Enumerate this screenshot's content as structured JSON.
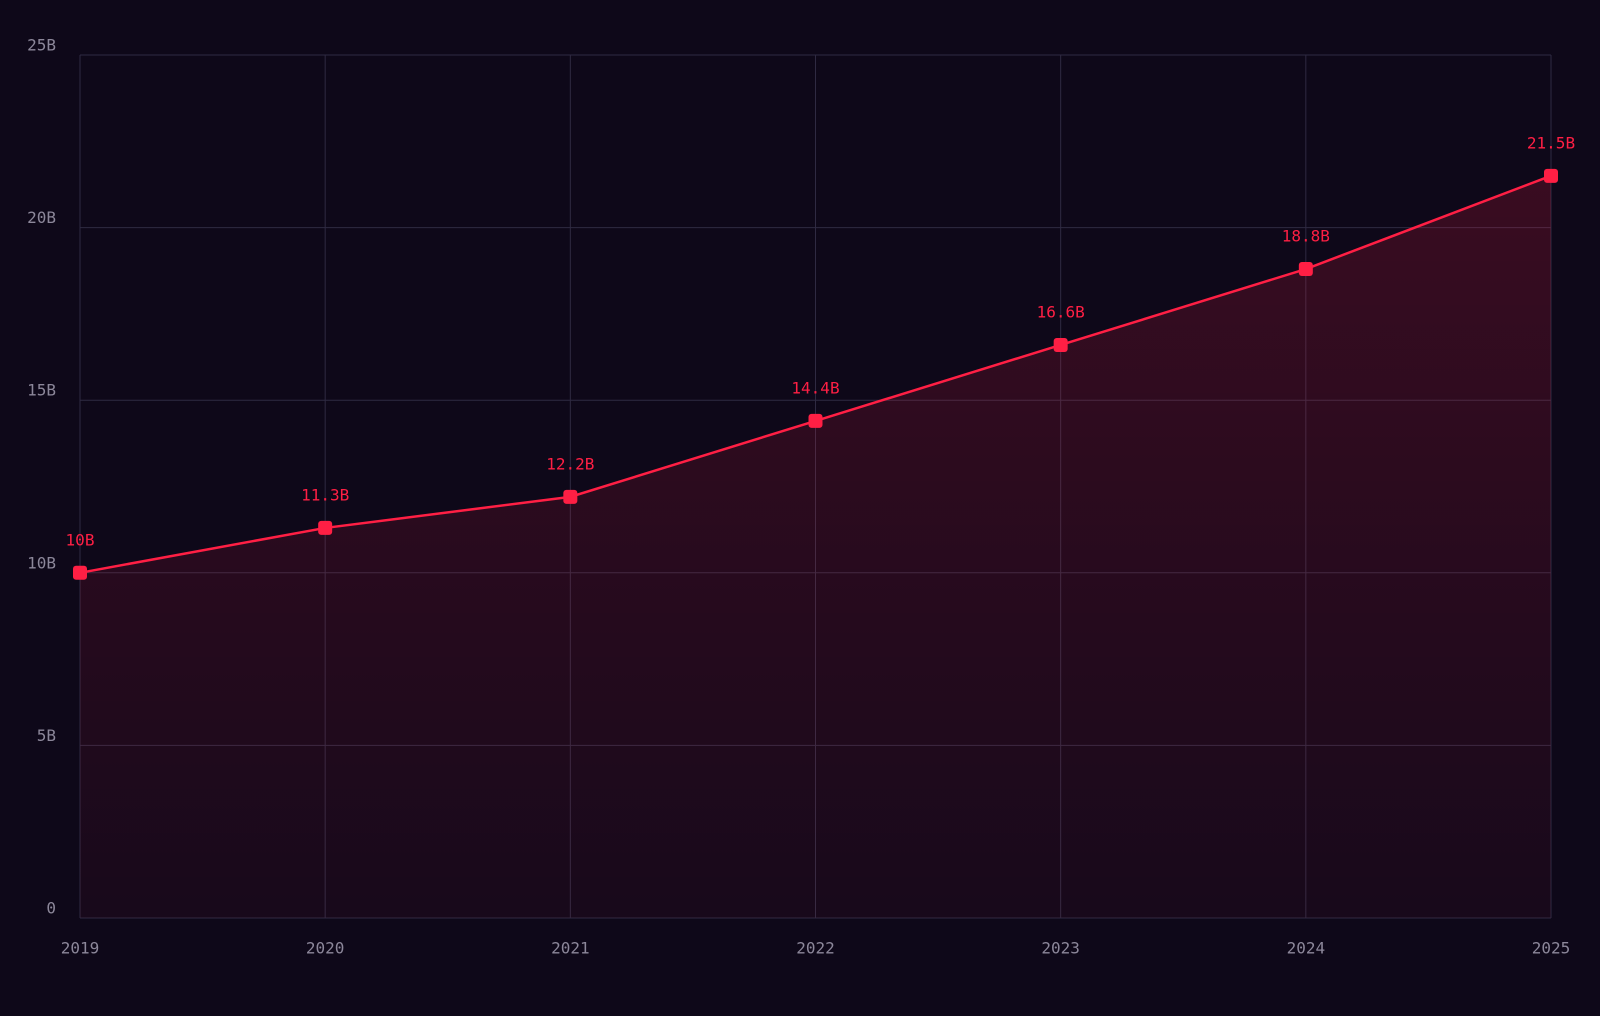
{
  "chart_data": {
    "type": "line",
    "x": [
      2019,
      2020,
      2021,
      2022,
      2023,
      2024,
      2025
    ],
    "values": [
      10,
      11.3,
      12.2,
      14.4,
      16.6,
      18.8,
      21.5
    ],
    "value_labels": [
      "10B",
      "11.3B",
      "12.2B",
      "14.4B",
      "16.6B",
      "18.8B",
      "21.5B"
    ],
    "color": "#ff1f44",
    "area": true,
    "grid": true,
    "xlim": [
      2019,
      2025
    ],
    "xticks": [
      2019,
      2020,
      2021,
      2022,
      2023,
      2024,
      2025
    ],
    "ylim": [
      0,
      25
    ],
    "yticks": [
      0,
      {
        "value": 5,
        "label": "5B"
      },
      {
        "value": 10,
        "label": "10B"
      },
      {
        "value": 15,
        "label": "15B"
      },
      {
        "value": 20,
        "label": "20B"
      },
      {
        "value": 25,
        "label": "25B"
      }
    ]
  }
}
